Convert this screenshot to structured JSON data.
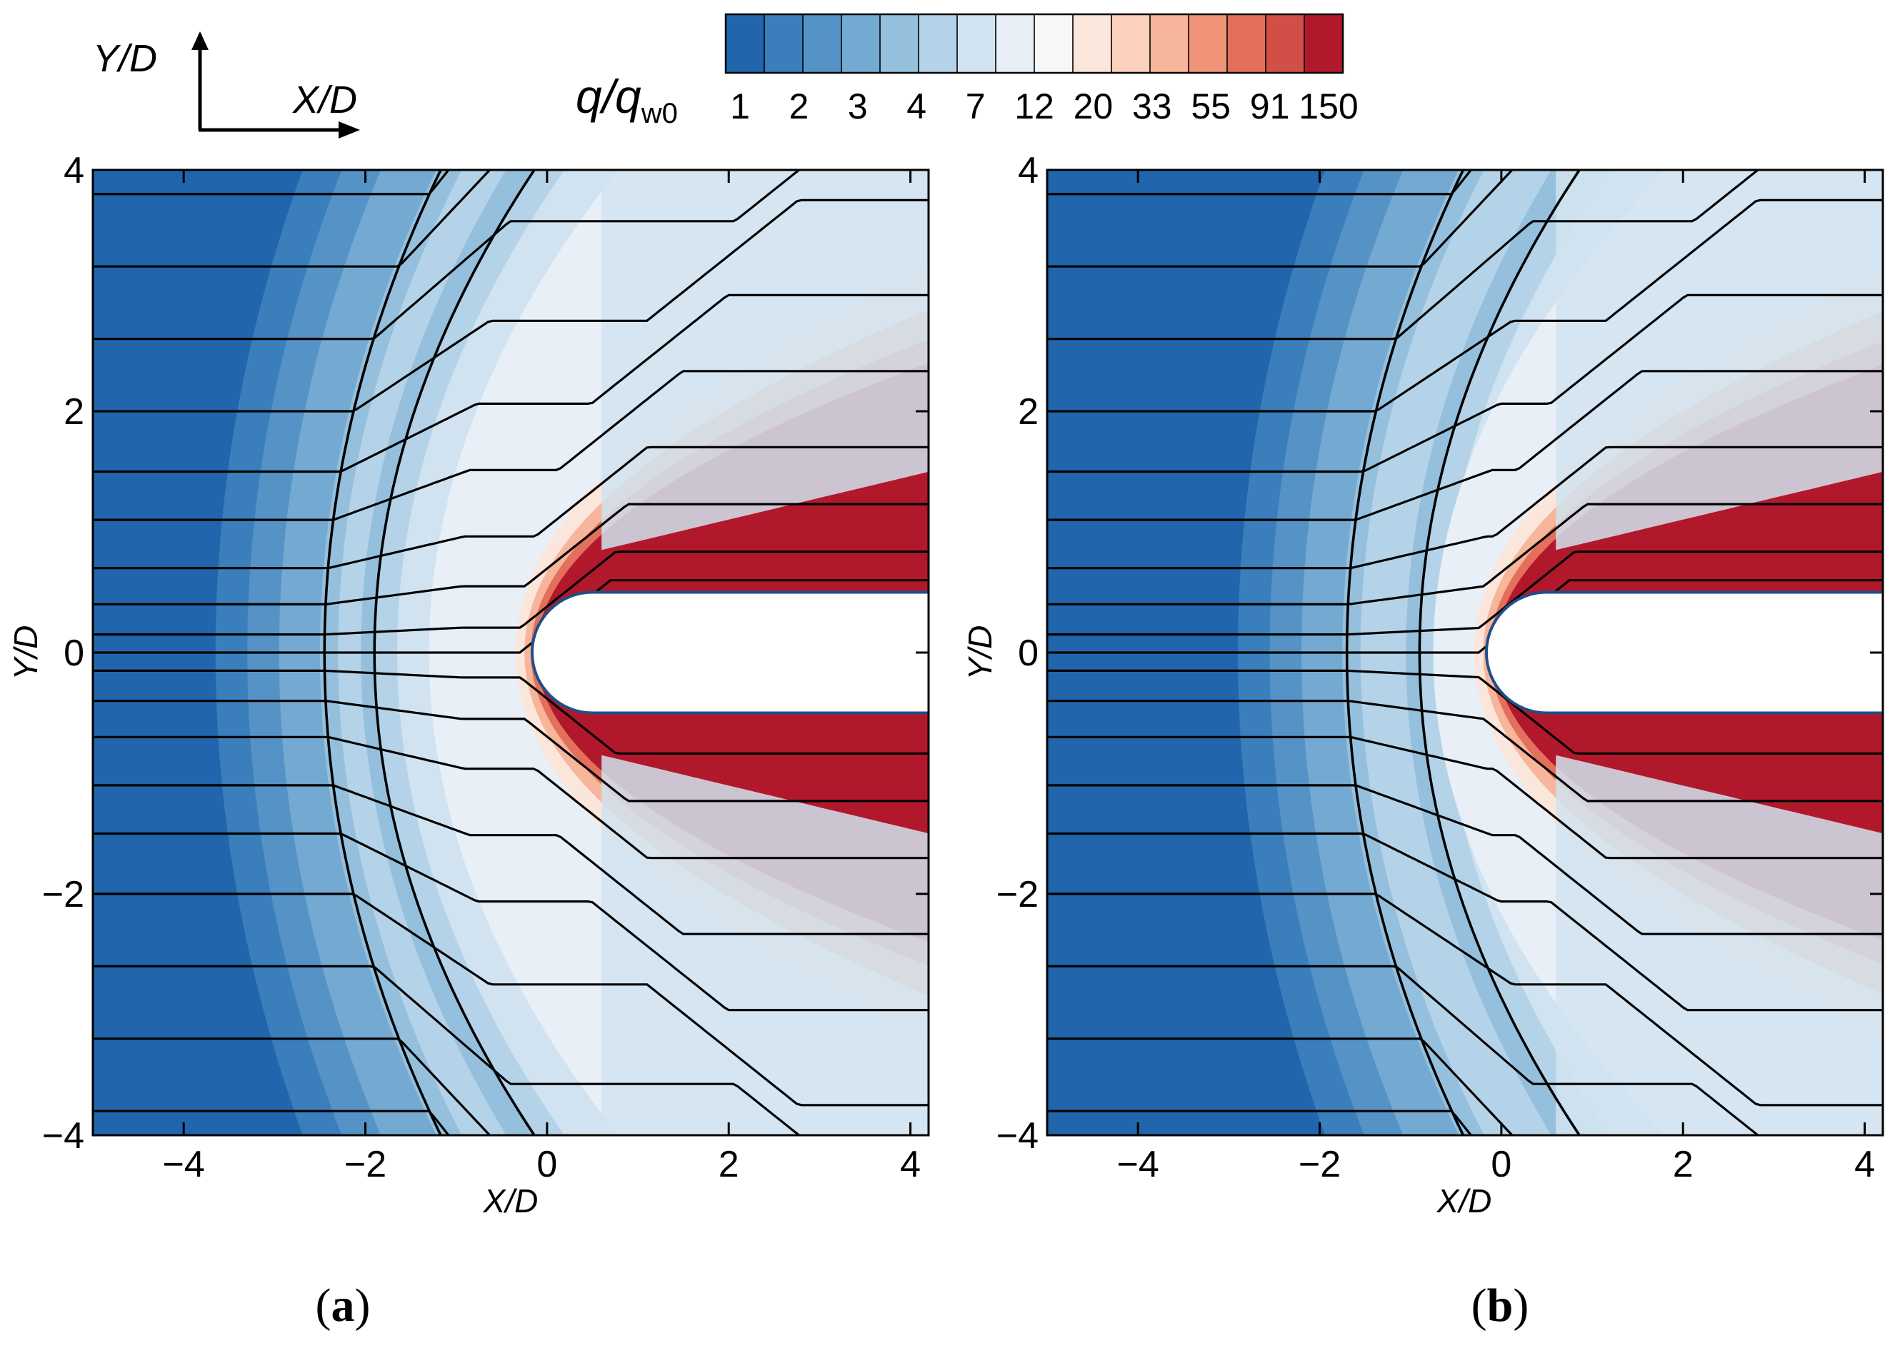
{
  "figure": {
    "colorbar": {
      "label_main": "q/q",
      "label_sub": "w0",
      "levels": [
        "1",
        "2",
        "3",
        "4",
        "7",
        "12",
        "20",
        "33",
        "55",
        "91",
        "150"
      ],
      "colors": [
        "#2166ac",
        "#3a7ebc",
        "#5593c7",
        "#74a9d1",
        "#95c0dd",
        "#b5d3e8",
        "#d1e3f0",
        "#e8eff6",
        "#f7f7f7",
        "#fbe6dc",
        "#fbd0bc",
        "#f7b59b",
        "#ef9479",
        "#e2705c",
        "#d14f47",
        "#b2182b"
      ]
    },
    "orientation_key": {
      "y_label": "Y/D",
      "x_label": "X/D"
    },
    "panels": [
      {
        "id": "a",
        "label_open": "(",
        "label_letter": "a",
        "label_close": ")"
      },
      {
        "id": "b",
        "label_open": "(",
        "label_letter": "b",
        "label_close": ")"
      }
    ]
  },
  "chart_data": [
    {
      "type": "heatmap",
      "panel": "a",
      "title": "",
      "xlabel": "X/D",
      "ylabel": "Y/D",
      "xlim": [
        -5,
        4.2
      ],
      "ylim": [
        -4,
        4
      ],
      "x_ticks": [
        -4,
        -2,
        0,
        2,
        4
      ],
      "y_ticks": [
        -4,
        -2,
        0,
        2,
        4
      ],
      "x_tick_labels": [
        "−4",
        "−2",
        "0",
        "2",
        "4"
      ],
      "y_tick_labels": [
        "−4",
        "−2",
        "0",
        "2",
        "4"
      ],
      "color_variable": "q/q_w0",
      "color_scale_levels": [
        1,
        2,
        3,
        4,
        7,
        12,
        20,
        33,
        55,
        91,
        150
      ],
      "features": {
        "body_nose_x": 0.0,
        "body_half_width": 0.5,
        "bow_shock_standoff_x": -0.3,
        "outer_shock_x_at_centerline": -2.45,
        "inner_shock_x_at_centerline": -1.9,
        "streamlines": true
      }
    },
    {
      "type": "heatmap",
      "panel": "b",
      "title": "",
      "xlabel": "X/D",
      "ylabel": "Y/D",
      "xlim": [
        -5,
        4.2
      ],
      "ylim": [
        -4,
        4
      ],
      "x_ticks": [
        -4,
        -2,
        0,
        2,
        4
      ],
      "y_ticks": [
        -4,
        -2,
        0,
        2,
        4
      ],
      "x_tick_labels": [
        "−4",
        "−2",
        "0",
        "2",
        "4"
      ],
      "y_tick_labels": [
        "−4",
        "−2",
        "0",
        "2",
        "4"
      ],
      "color_variable": "q/q_w0",
      "color_scale_levels": [
        1,
        2,
        3,
        4,
        7,
        12,
        20,
        33,
        55,
        91,
        150
      ],
      "features": {
        "body_nose_x": 0.0,
        "body_half_width": 0.5,
        "bow_shock_standoff_x": -0.25,
        "outer_shock_x_at_centerline": -1.7,
        "inner_shock_x_at_centerline": -0.9,
        "streamlines": true
      }
    }
  ]
}
